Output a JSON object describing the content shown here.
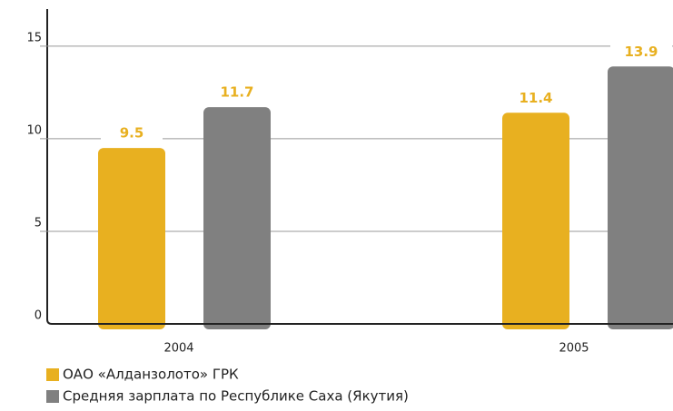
{
  "chart_data": {
    "type": "bar",
    "categories": [
      "2004",
      "2005"
    ],
    "series": [
      {
        "name": "ОАО «Алданзолото» ГРК",
        "color": "#e8b020",
        "values": [
          9.5,
          11.4
        ]
      },
      {
        "name": "Средняя зарплата по Республике Саха (Якутия)",
        "color": "#808080",
        "values": [
          11.7,
          13.9
        ]
      }
    ],
    "ylim": [
      0,
      17
    ],
    "yticks": [
      0,
      5,
      10,
      15
    ],
    "grid": true
  }
}
